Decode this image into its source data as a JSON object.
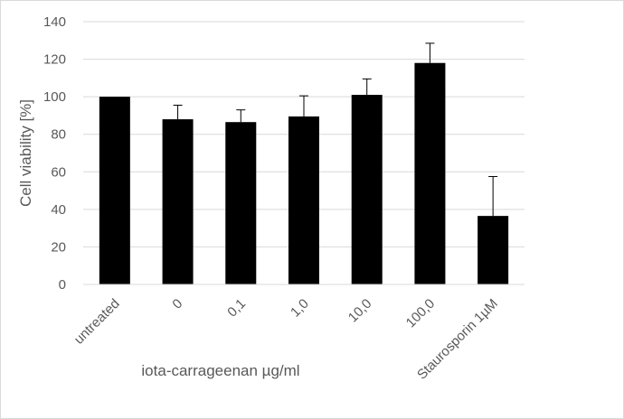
{
  "chart_data": {
    "type": "bar",
    "title": "",
    "xlabel": "iota-carrageenan µg/ml",
    "ylabel": "Cell viability [%]",
    "ylim": [
      0,
      140
    ],
    "yticks": [
      0,
      20,
      40,
      60,
      80,
      100,
      120,
      140
    ],
    "grid": true,
    "legend": "none",
    "categories": [
      "untreated",
      "0",
      "0,1",
      "1,0",
      "10,0",
      "100,0",
      "Staurosporin 1µM"
    ],
    "series": [
      {
        "values": [
          100,
          88,
          86.5,
          89.5,
          101,
          118,
          36.5
        ],
        "error_plus": [
          0,
          7.5,
          6.5,
          11,
          8.5,
          10.5,
          21
        ],
        "color": "#000000"
      }
    ]
  }
}
